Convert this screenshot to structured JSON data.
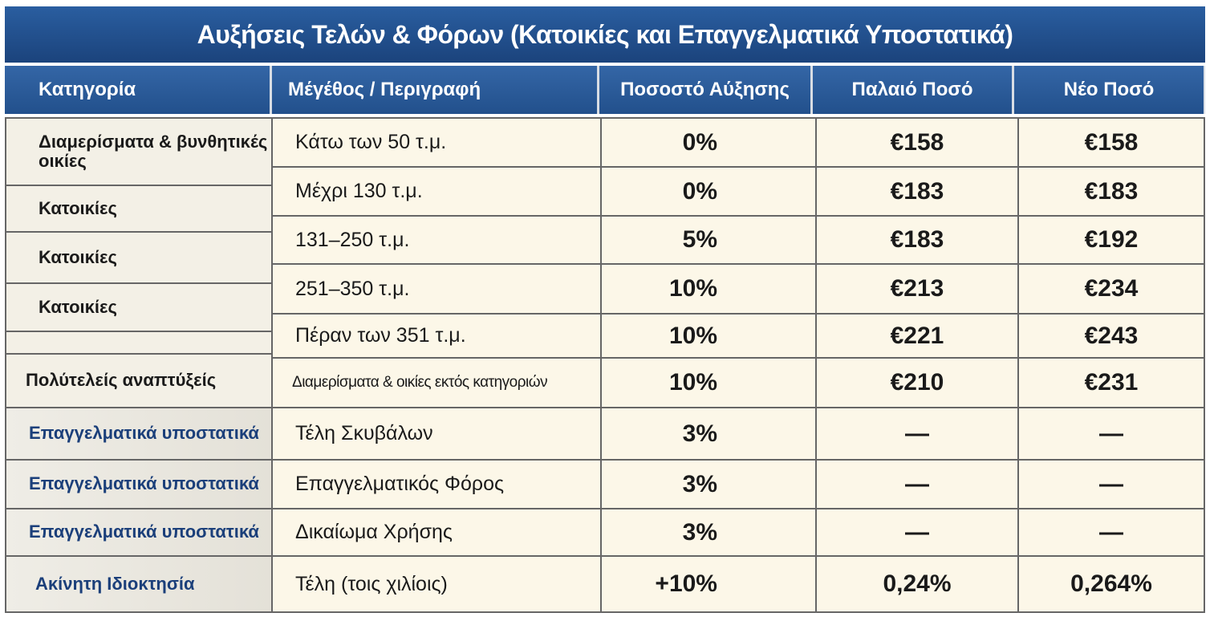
{
  "title": "Αυξήσεις Τελών & Φόρων (Κατοικίες και Επαγγελματικά Υποστατικά)",
  "headers": [
    "Κατηγορία",
    "Μέγέθος / Περιγραφή",
    "Ποσοστό Αύξησης",
    "Παλαιό Ποσό",
    "Νέο Ποσό"
  ],
  "categories": [
    {
      "label": "Διαμερίσματα & βυνθητικές οικίες"
    },
    {
      "label": "Κατοικίες"
    },
    {
      "label": "Κατοικίες"
    },
    {
      "label": "Κατοικίες"
    },
    {
      "label": ""
    },
    {
      "label": "Πολύτελείς αναπτύξείς"
    },
    {
      "label": "Επαγγελματικά υποστατικά"
    },
    {
      "label": "Επαγγελματικά υποστατικά"
    },
    {
      "label": "Επαγγελματικά υποστατικά"
    },
    {
      "label": "Ακίνητη Ιδιοκτησία"
    }
  ],
  "rows": [
    {
      "desc": "Κάτω των 50 τ.μ.",
      "pct": "0%",
      "old": "€158",
      "new": "€158"
    },
    {
      "desc": "Μέχρι 130 τ.μ.",
      "pct": "0%",
      "old": "€183",
      "new": "€183"
    },
    {
      "desc": "131–250 τ.μ.",
      "pct": "5%",
      "old": "€183",
      "new": "€192"
    },
    {
      "desc": "251–350 τ.μ.",
      "pct": "10%",
      "old": "€213",
      "new": "€234"
    },
    {
      "desc": "Πέραν των 351 τ.μ.",
      "pct": "10%",
      "old": "€221",
      "new": "€243"
    },
    {
      "desc": "Διαμερίσματα & οικίες εκτός κατηγοριών",
      "pct": "10%",
      "old": "€210",
      "new": "€231"
    },
    {
      "desc": "Τέλη Σκυβάλων",
      "pct": "3%",
      "old": "—",
      "new": "—"
    },
    {
      "desc": "Επαγγελματικός Φόρος",
      "pct": "3%",
      "old": "—",
      "new": "—"
    },
    {
      "desc": "Δικαίωμα Χρήσης",
      "pct": "3%",
      "old": "—",
      "new": "—"
    },
    {
      "desc": "Τέλη (τοις χιλίοις)",
      "pct": "+10%",
      "old": "0,24%",
      "new": "0,264%"
    }
  ]
}
